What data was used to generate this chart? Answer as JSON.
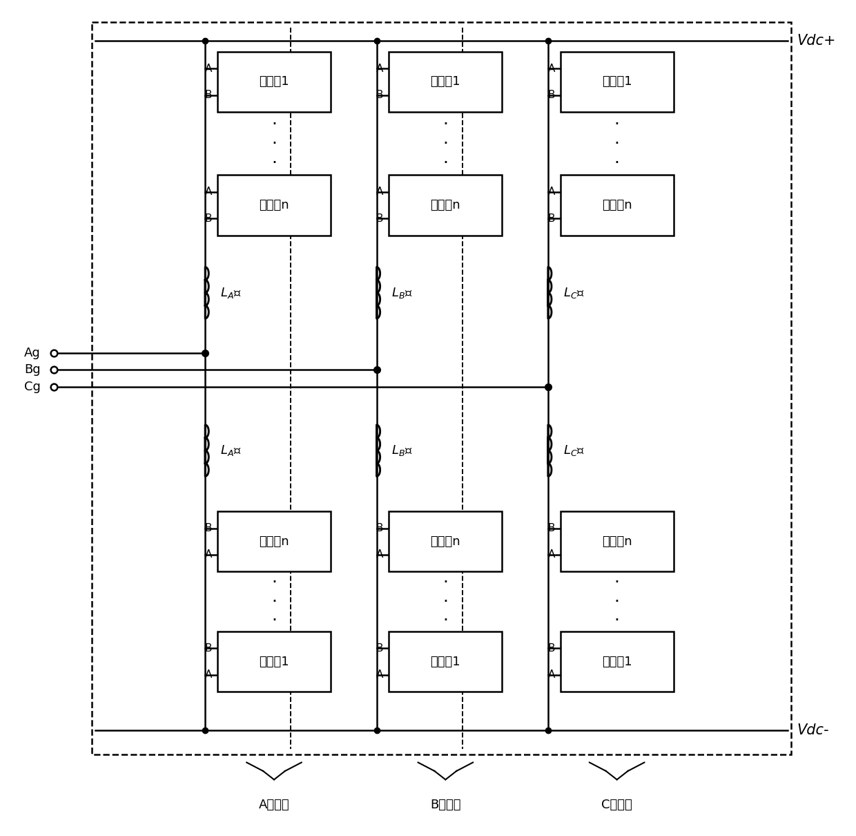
{
  "bg_color": "#ffffff",
  "line_color": "#000000",
  "figsize": [
    12.4,
    12.1
  ],
  "dpi": 100,
  "phases": [
    "A",
    "B",
    "C"
  ],
  "phase_labels": [
    "A相单元",
    "B相单元",
    "C相单元"
  ],
  "vdc_plus": "Vdc+",
  "vdc_minus": "Vdc-",
  "sm_label_1": "子模块1",
  "sm_label_n": "子模块n",
  "grid_labels": [
    "Ag",
    "Bg",
    "Cg"
  ],
  "inductor_upper_labels": [
    "L_{A上}",
    "L_{B上}",
    "L_{C上}"
  ],
  "inductor_lower_labels": [
    "L_{A下}",
    "L_{B下}",
    "L_{C下}"
  ]
}
